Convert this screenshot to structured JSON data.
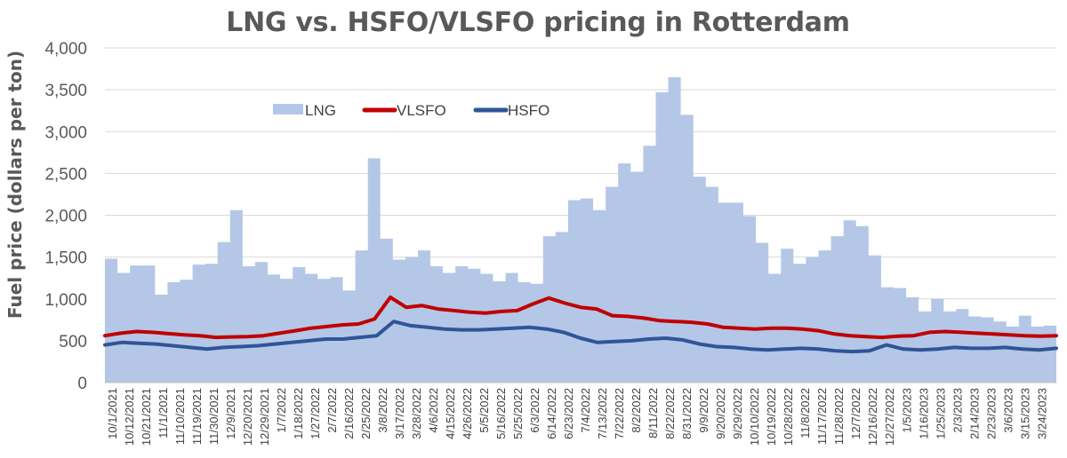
{
  "chart_data": {
    "type": "area",
    "title": "LNG vs. HSFO/VLSFO pricing in Rotterdam",
    "xlabel": "",
    "ylabel": "Fuel price (dollars per ton)",
    "ylim": [
      0,
      4000
    ],
    "y_ticks": [
      "0",
      "500",
      "1,000",
      "1,500",
      "2,000",
      "2,500",
      "3,000",
      "3,500",
      "4,000"
    ],
    "grid": true,
    "legend": "top-left",
    "x_tick_labels": [
      "10/1/2021",
      "10/12/2021",
      "10/21/2021",
      "11/1/2021",
      "11/10/2021",
      "11/19/2021",
      "11/30/2021",
      "12/9/2021",
      "12/20/2021",
      "12/29/2021",
      "1/7/2022",
      "1/18/2022",
      "1/27/2022",
      "2/7/2022",
      "2/16/2022",
      "2/25/2022",
      "3/8/2022",
      "3/17/2022",
      "3/28/2022",
      "4/6/2022",
      "4/15/2022",
      "4/26/2022",
      "5/5/2022",
      "5/16/2022",
      "5/25/2022",
      "6/3/2022",
      "6/14/2022",
      "6/23/2022",
      "7/4/2022",
      "7/13/2022",
      "7/22/2022",
      "8/2/2022",
      "8/11/2022",
      "8/22/2022",
      "8/31/2022",
      "9/9/2022",
      "9/20/2022",
      "9/29/2022",
      "10/10/2022",
      "10/19/2022",
      "10/28/2022",
      "11/8/2022",
      "11/17/2022",
      "11/28/2022",
      "12/7/2022",
      "12/16/2022",
      "12/27/2022",
      "1/5/2023",
      "1/16/2023",
      "1/25/2023",
      "2/3/2023",
      "2/14/2023",
      "2/23/2023",
      "3/6/2023",
      "3/15/2023",
      "3/24/2023"
    ],
    "series": [
      {
        "name": "LNG",
        "kind": "area",
        "color": "#b4c7e7",
        "values": [
          1480,
          1310,
          1400,
          1400,
          1050,
          1200,
          1230,
          1410,
          1420,
          1680,
          2060,
          1390,
          1440,
          1290,
          1240,
          1380,
          1300,
          1240,
          1260,
          1100,
          1580,
          2680,
          1720,
          1470,
          1500,
          1580,
          1390,
          1310,
          1390,
          1360,
          1300,
          1210,
          1310,
          1200,
          1180,
          1750,
          1800,
          2180,
          2200,
          2060,
          2340,
          2620,
          2520,
          2830,
          3470,
          3650,
          3200,
          2460,
          2340,
          2150,
          2150,
          1990,
          1670,
          1300,
          1600,
          1420,
          1500,
          1580,
          1750,
          1940,
          1870,
          1520,
          1140,
          1130,
          1020,
          850,
          1000,
          850,
          880,
          790,
          780,
          730,
          670,
          800,
          670,
          680
        ]
      },
      {
        "name": "VLSFO",
        "kind": "line",
        "color": "#c00000",
        "values": [
          560,
          590,
          610,
          600,
          585,
          570,
          560,
          540,
          545,
          550,
          560,
          590,
          620,
          650,
          670,
          690,
          700,
          760,
          1020,
          900,
          920,
          880,
          860,
          840,
          830,
          850,
          860,
          940,
          1010,
          950,
          900,
          880,
          800,
          790,
          770,
          740,
          730,
          720,
          700,
          660,
          650,
          640,
          650,
          650,
          640,
          620,
          580,
          560,
          550,
          540,
          555,
          560,
          600,
          610,
          600,
          590,
          580,
          570,
          560,
          555,
          560
        ]
      },
      {
        "name": "HSFO",
        "kind": "line",
        "color": "#2f5597",
        "values": [
          450,
          480,
          470,
          460,
          440,
          420,
          400,
          420,
          430,
          440,
          460,
          480,
          500,
          520,
          520,
          540,
          560,
          730,
          680,
          660,
          640,
          630,
          630,
          640,
          650,
          660,
          640,
          600,
          530,
          480,
          490,
          500,
          520,
          530,
          510,
          460,
          430,
          420,
          400,
          390,
          400,
          410,
          400,
          380,
          370,
          380,
          450,
          400,
          390,
          400,
          420,
          410,
          410,
          420,
          400,
          390,
          410
        ]
      }
    ]
  }
}
